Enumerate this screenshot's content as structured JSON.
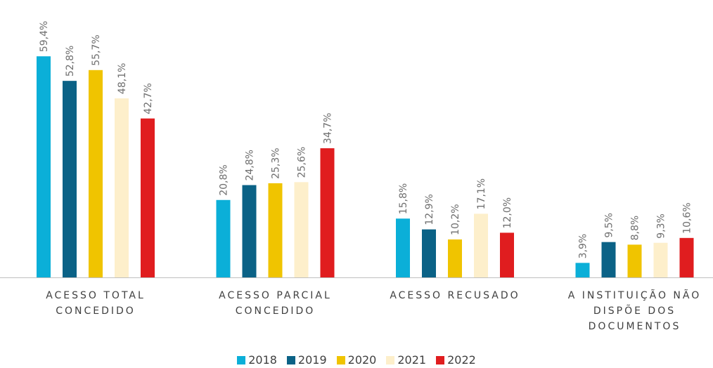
{
  "chart_data": {
    "type": "bar",
    "categories": [
      "ACESSO TOTAL CONCEDIDO",
      "ACESSO PARCIAL CONCEDIDO",
      "ACESSO RECUSADO",
      "A INSTITUIÇÃO NÃO DISPÕE DOS DOCUMENTOS"
    ],
    "series": [
      {
        "name": "2018",
        "color": "#0bafd8",
        "values": [
          59.4,
          20.8,
          15.8,
          3.9
        ],
        "value_labels": [
          "59,4%",
          "20,8%",
          "15,8%",
          "3,9%"
        ]
      },
      {
        "name": "2019",
        "color": "#0b6286",
        "values": [
          52.8,
          24.8,
          12.9,
          9.5
        ],
        "value_labels": [
          "52,8%",
          "24,8%",
          "12,9%",
          "9,5%"
        ]
      },
      {
        "name": "2020",
        "color": "#f0c400",
        "values": [
          55.7,
          25.3,
          10.2,
          8.8
        ],
        "value_labels": [
          "55,7%",
          "25,3%",
          "10,2%",
          "8,8%"
        ]
      },
      {
        "name": "2021",
        "color": "#fdefcb",
        "values": [
          48.1,
          25.6,
          17.1,
          9.3
        ],
        "value_labels": [
          "48,1%",
          "25,6%",
          "17,1%",
          "9,3%"
        ]
      },
      {
        "name": "2022",
        "color": "#e01d1f",
        "values": [
          42.7,
          34.7,
          12.0,
          10.6
        ],
        "value_labels": [
          "42,7%",
          "34,7%",
          "12,0%",
          "10,6%"
        ]
      }
    ]
  }
}
